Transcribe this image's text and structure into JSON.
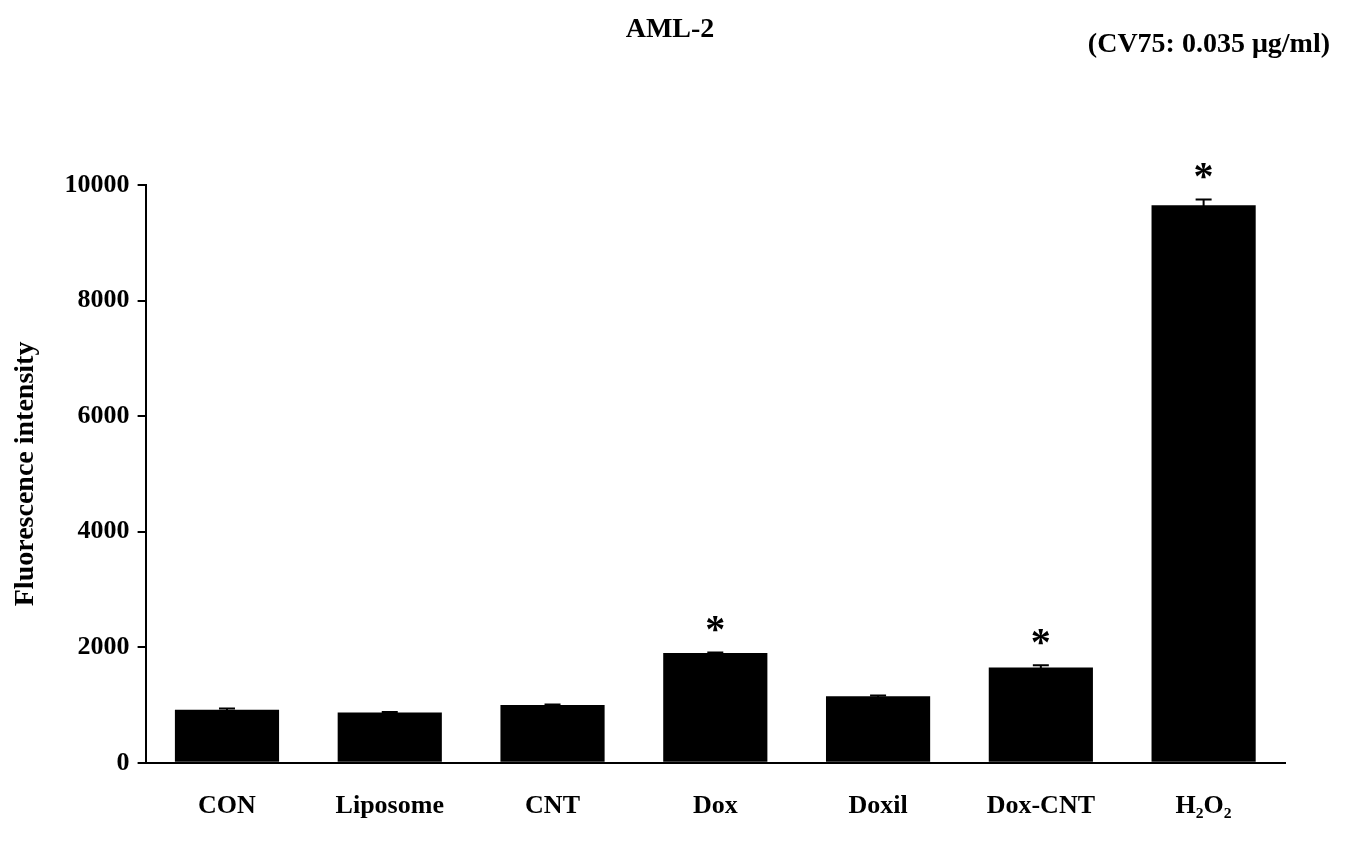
{
  "chart_data": {
    "type": "bar",
    "title": "AML-2",
    "subtitle": "(CV75: 0.035 μg/ml)",
    "y_label": "Fluorescence intensity",
    "categories": [
      "CON",
      "Liposome",
      "CNT",
      "Dox",
      "Doxil",
      "Dox-CNT",
      "H₂O₂"
    ],
    "values": [
      920,
      870,
      1000,
      1900,
      1150,
      1650,
      9650
    ],
    "errors": [
      20,
      10,
      10,
      10,
      15,
      40,
      100
    ],
    "color": "#000000",
    "ylim": [
      0,
      10000
    ],
    "yticks": [
      0,
      2000,
      4000,
      6000,
      8000,
      10000
    ],
    "grid": false,
    "annotations": [
      {
        "category": "Dox",
        "text": "*"
      },
      {
        "category": "Dox-CNT",
        "text": "*"
      },
      {
        "category": "H₂O₂",
        "text": "*"
      }
    ]
  }
}
